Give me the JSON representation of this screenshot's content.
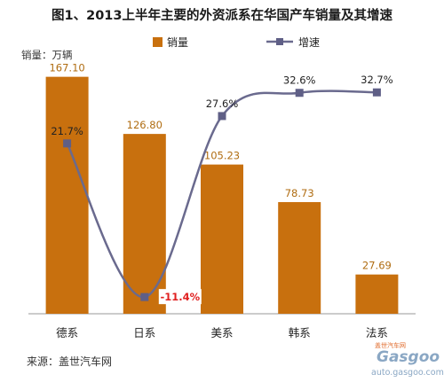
{
  "chart_data": {
    "type": "bar",
    "title": "图1、2013上半年主要的外资派系在华国产车销量及其增速",
    "unit_label": "销量：万辆",
    "categories": [
      "德系",
      "日系",
      "美系",
      "韩系",
      "法系"
    ],
    "series": [
      {
        "name": "销量",
        "type": "bar",
        "values": [
          167.1,
          126.8,
          105.23,
          78.73,
          27.69
        ],
        "labels": [
          "167.10",
          "126.80",
          "105.23",
          "78.73",
          "27.69"
        ]
      },
      {
        "name": "增速",
        "type": "line",
        "values": [
          21.7,
          -11.4,
          27.6,
          32.6,
          32.7
        ],
        "labels": [
          "21.7%",
          "-11.4%",
          "27.6%",
          "32.6%",
          "32.7%"
        ]
      }
    ],
    "ylim_bar": [
      0,
      180
    ],
    "ylim_line": [
      -15,
      40
    ],
    "legend_position": "top",
    "grid": false,
    "colors": {
      "bar": "#c8700e",
      "line": "#6a6a8e",
      "marker": "#5f5f86",
      "neg_label": "#e02020"
    },
    "source": "来源：盖世汽车网"
  },
  "watermark": {
    "brand": "Gasgoo",
    "url": "auto.gasgoo.com",
    "cn": "盖世汽车网"
  }
}
